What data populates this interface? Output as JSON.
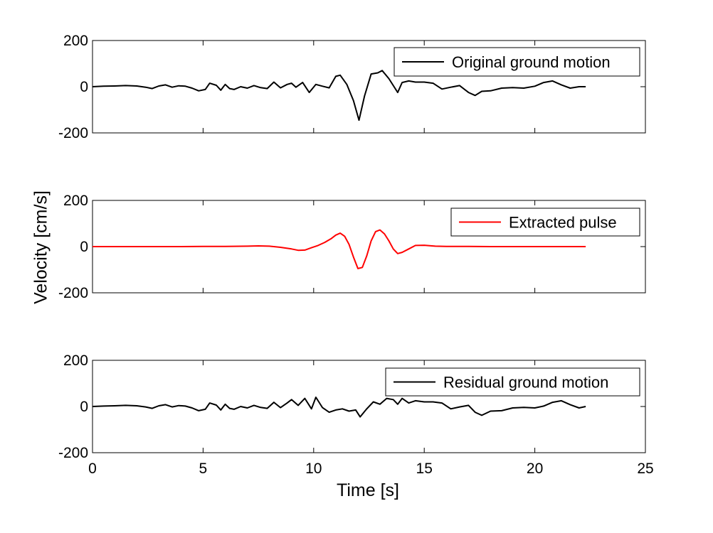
{
  "chart_data": {
    "type": "line",
    "xlabel": "Time [s]",
    "ylabel": "Velocity [cm/s]",
    "xlim": [
      0,
      25
    ],
    "xticks": [
      "0",
      "5",
      "10",
      "15",
      "20",
      "25"
    ],
    "yticks": [
      "200",
      "0",
      "-200"
    ],
    "grid": false,
    "legend_position": "top-right",
    "panels": [
      {
        "ylim": [
          -200,
          200
        ],
        "series": [
          {
            "name": "Original ground motion",
            "color": "#000000",
            "x": [
              0,
              0.5,
              1.0,
              1.5,
              2.0,
              2.4,
              2.7,
              3.0,
              3.3,
              3.6,
              3.9,
              4.2,
              4.5,
              4.8,
              5.1,
              5.3,
              5.6,
              5.8,
              6.0,
              6.2,
              6.4,
              6.7,
              7.0,
              7.3,
              7.6,
              7.9,
              8.2,
              8.5,
              8.8,
              9.0,
              9.2,
              9.5,
              9.8,
              10.1,
              10.4,
              10.7,
              11.0,
              11.2,
              11.5,
              11.8,
              12.05,
              12.3,
              12.6,
              12.9,
              13.1,
              13.4,
              13.6,
              13.8,
              14.0,
              14.3,
              14.6,
              15.0,
              15.4,
              15.8,
              16.2,
              16.6,
              17.0,
              17.3,
              17.6,
              18.0,
              18.5,
              19.0,
              19.5,
              20.0,
              20.4,
              20.8,
              21.2,
              21.6,
              22.0,
              22.3
            ],
            "y": [
              0,
              2,
              3,
              5,
              3,
              -2,
              -8,
              3,
              8,
              -2,
              4,
              2,
              -6,
              -18,
              -12,
              15,
              6,
              -15,
              10,
              -8,
              -12,
              0,
              -6,
              5,
              -4,
              -8,
              20,
              -5,
              10,
              15,
              -2,
              18,
              -25,
              10,
              2,
              -5,
              45,
              50,
              10,
              -60,
              -145,
              -40,
              55,
              60,
              70,
              35,
              5,
              -25,
              18,
              25,
              20,
              20,
              15,
              -10,
              -2,
              5,
              -25,
              -38,
              -20,
              -18,
              -6,
              -4,
              -6,
              2,
              18,
              25,
              8,
              -6,
              0,
              0
            ]
          }
        ]
      },
      {
        "ylim": [
          -200,
          200
        ],
        "series": [
          {
            "name": "Extracted pulse",
            "color": "#ff0000",
            "x": [
              0,
              1.0,
              2.0,
              3.0,
              4.0,
              5.0,
              6.0,
              7.0,
              7.5,
              8.0,
              8.5,
              9.0,
              9.3,
              9.6,
              9.9,
              10.2,
              10.5,
              10.8,
              11.0,
              11.2,
              11.4,
              11.6,
              11.8,
              12.0,
              12.2,
              12.4,
              12.6,
              12.8,
              13.0,
              13.2,
              13.4,
              13.6,
              13.8,
              14.0,
              14.3,
              14.6,
              15.0,
              15.5,
              16.0,
              17.0,
              18.0,
              19.0,
              20.0,
              21.0,
              22.3
            ],
            "y": [
              0,
              0,
              0,
              0,
              0,
              1,
              1,
              2,
              3,
              2,
              -3,
              -10,
              -16,
              -15,
              -5,
              5,
              18,
              35,
              50,
              58,
              45,
              10,
              -45,
              -95,
              -90,
              -40,
              25,
              65,
              72,
              55,
              25,
              -10,
              -30,
              -25,
              -10,
              5,
              6,
              2,
              1,
              1,
              0,
              0,
              0,
              0,
              0
            ]
          }
        ]
      },
      {
        "ylim": [
          -200,
          200
        ],
        "series": [
          {
            "name": "Residual ground motion",
            "color": "#000000",
            "x": [
              0,
              0.5,
              1.0,
              1.5,
              2.0,
              2.4,
              2.7,
              3.0,
              3.3,
              3.6,
              3.9,
              4.2,
              4.5,
              4.8,
              5.1,
              5.3,
              5.6,
              5.8,
              6.0,
              6.2,
              6.4,
              6.7,
              7.0,
              7.3,
              7.6,
              7.9,
              8.2,
              8.5,
              8.8,
              9.0,
              9.3,
              9.6,
              9.9,
              10.1,
              10.4,
              10.7,
              11.0,
              11.3,
              11.6,
              11.9,
              12.1,
              12.4,
              12.7,
              13.0,
              13.3,
              13.6,
              13.8,
              14.0,
              14.3,
              14.6,
              15.0,
              15.4,
              15.8,
              16.2,
              16.6,
              17.0,
              17.3,
              17.6,
              18.0,
              18.5,
              19.0,
              19.5,
              20.0,
              20.4,
              20.8,
              21.2,
              21.6,
              22.0,
              22.3
            ],
            "y": [
              0,
              2,
              3,
              5,
              3,
              -2,
              -8,
              3,
              8,
              -2,
              4,
              2,
              -6,
              -18,
              -12,
              15,
              6,
              -15,
              10,
              -8,
              -12,
              0,
              -6,
              5,
              -4,
              -8,
              18,
              -5,
              15,
              30,
              5,
              35,
              -10,
              40,
              -5,
              -25,
              -15,
              -10,
              -20,
              -15,
              -45,
              -10,
              20,
              10,
              35,
              30,
              10,
              35,
              15,
              25,
              20,
              20,
              15,
              -10,
              -2,
              5,
              -25,
              -38,
              -20,
              -18,
              -6,
              -4,
              -6,
              2,
              18,
              25,
              8,
              -6,
              0
            ]
          }
        ]
      }
    ]
  }
}
